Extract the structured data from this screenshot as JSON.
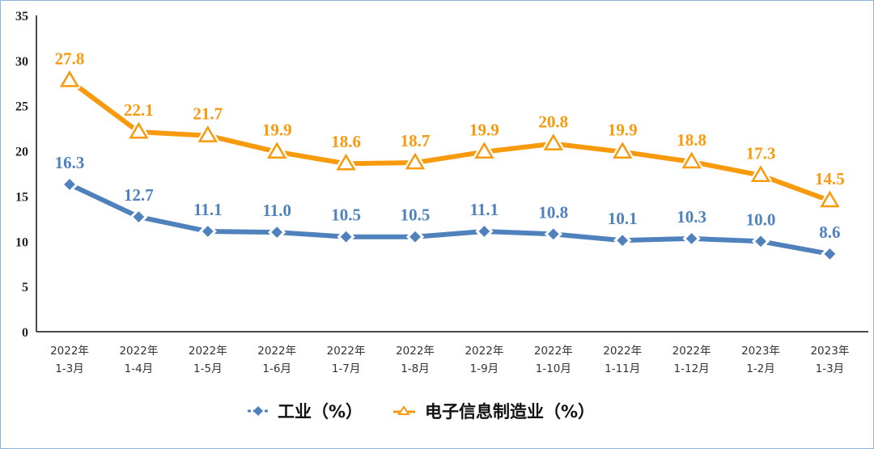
{
  "chart_data": {
    "type": "line",
    "categories": [
      [
        "2022年",
        "1-3月"
      ],
      [
        "2022年",
        "1-4月"
      ],
      [
        "2022年",
        "1-5月"
      ],
      [
        "2022年",
        "1-6月"
      ],
      [
        "2022年",
        "1-7月"
      ],
      [
        "2022年",
        "1-8月"
      ],
      [
        "2022年",
        "1-9月"
      ],
      [
        "2022年",
        "1-10月"
      ],
      [
        "2022年",
        "1-11月"
      ],
      [
        "2022年",
        "1-12月"
      ],
      [
        "2023年",
        "1-2月"
      ],
      [
        "2023年",
        "1-3月"
      ]
    ],
    "series": [
      {
        "name": "工业（%）",
        "color": "#4f81bd",
        "marker": "diamond",
        "values": [
          16.3,
          12.7,
          11.1,
          11.0,
          10.5,
          10.5,
          11.1,
          10.8,
          10.1,
          10.3,
          10.0,
          8.6
        ],
        "labels": [
          "16.3",
          "12.7",
          "11.1",
          "11.0",
          "10.5",
          "10.5",
          "11.1",
          "10.8",
          "10.1",
          "10.3",
          "10.0",
          "8.6"
        ]
      },
      {
        "name": "电子信息制造业（%）",
        "color": "#f79a0e",
        "marker": "triangle-open",
        "values": [
          27.8,
          22.1,
          21.7,
          19.9,
          18.6,
          18.7,
          19.9,
          20.8,
          19.9,
          18.8,
          17.3,
          14.5
        ],
        "labels": [
          "27.8",
          "22.1",
          "21.7",
          "19.9",
          "18.6",
          "18.7",
          "19.9",
          "20.8",
          "19.9",
          "18.8",
          "17.3",
          "14.5"
        ]
      }
    ],
    "ylim": [
      0,
      35
    ],
    "yticks": [
      "0",
      "5",
      "10",
      "15",
      "20",
      "25",
      "30",
      "35"
    ],
    "grid": false,
    "legend": "bottom"
  }
}
